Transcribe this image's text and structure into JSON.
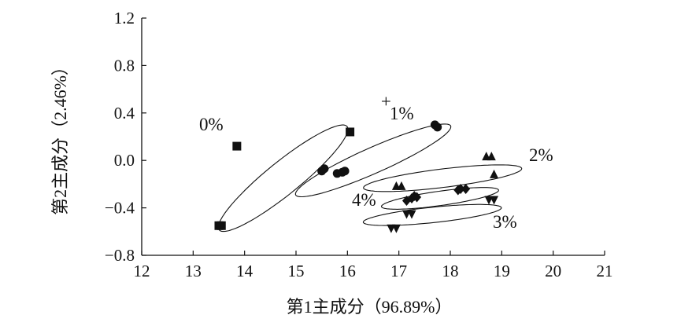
{
  "chart_data": {
    "type": "scatter",
    "title": "",
    "xlabel": "第1主成分（96.89%）",
    "ylabel": "第2主成分（2.46%）",
    "xlim": [
      12,
      21
    ],
    "ylim": [
      -0.8,
      1.2
    ],
    "xticks": [
      "12",
      "13",
      "14",
      "15",
      "16",
      "17",
      "18",
      "19",
      "20",
      "21"
    ],
    "yticks": [
      "−0.8",
      "−0.4",
      "0.0",
      "0.4",
      "0.8",
      "1.2"
    ],
    "grid": false,
    "legend": "none",
    "series": [
      {
        "label": "0%",
        "marker": "square",
        "points": [
          [
            13.85,
            0.12
          ],
          [
            16.05,
            0.24
          ],
          [
            13.5,
            -0.55
          ],
          [
            13.55,
            -0.55
          ]
        ],
        "ellipse": {
          "center": [
            14.75,
            -0.15
          ],
          "rx": 1.6,
          "ry": 0.32,
          "angle_deg": 39
        }
      },
      {
        "label": "1%",
        "marker": "circle",
        "points": [
          [
            15.5,
            -0.09
          ],
          [
            15.55,
            -0.07
          ],
          [
            15.8,
            -0.11
          ],
          [
            15.9,
            -0.1
          ],
          [
            15.95,
            -0.09
          ],
          [
            17.7,
            0.3
          ],
          [
            17.75,
            0.28
          ]
        ],
        "ellipse": {
          "center": [
            16.5,
            0.0
          ],
          "rx": 1.65,
          "ry": 0.25,
          "angle_deg": 24
        }
      },
      {
        "label": "2%",
        "marker": "triangle-up",
        "points": [
          [
            16.95,
            -0.22
          ],
          [
            17.05,
            -0.22
          ],
          [
            18.7,
            0.03
          ],
          [
            18.8,
            0.03
          ],
          [
            18.85,
            -0.12
          ]
        ],
        "ellipse": {
          "center": [
            17.85,
            -0.15
          ],
          "rx": 1.55,
          "ry": 0.18,
          "angle_deg": 7
        }
      },
      {
        "label": "3%",
        "marker": "triangle-down",
        "points": [
          [
            16.85,
            -0.57
          ],
          [
            16.95,
            -0.57
          ],
          [
            17.15,
            -0.45
          ],
          [
            17.25,
            -0.45
          ],
          [
            18.75,
            -0.33
          ],
          [
            18.85,
            -0.33
          ]
        ],
        "ellipse": {
          "center": [
            17.65,
            -0.46
          ],
          "rx": 1.35,
          "ry": 0.15,
          "angle_deg": 6
        }
      },
      {
        "label": "4%",
        "marker": "diamond",
        "points": [
          [
            17.15,
            -0.34
          ],
          [
            17.25,
            -0.32
          ],
          [
            17.3,
            -0.3
          ],
          [
            17.35,
            -0.31
          ],
          [
            18.15,
            -0.25
          ],
          [
            18.2,
            -0.24
          ],
          [
            18.3,
            -0.24
          ]
        ],
        "ellipse": {
          "center": [
            17.8,
            -0.32
          ],
          "rx": 1.15,
          "ry": 0.14,
          "angle_deg": 8
        }
      }
    ],
    "annotations": [
      {
        "text": "+",
        "x": 16.75,
        "y": 0.5
      }
    ]
  }
}
